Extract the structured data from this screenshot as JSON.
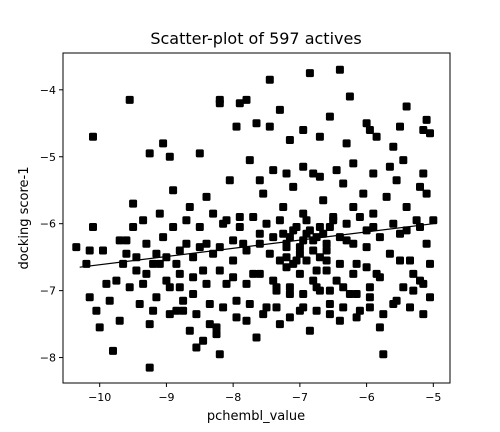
{
  "chart_data": {
    "type": "scatter",
    "title": "Scatter-plot of 597 actives",
    "xlabel": "pchembl_value",
    "ylabel": "docking score-1",
    "xlim": [
      -10.55,
      -4.75
    ],
    "ylim": [
      -8.38,
      -3.45
    ],
    "xticks": [
      -10,
      -9,
      -8,
      -7,
      -6,
      -5
    ],
    "xtick_labels": [
      "−10",
      "−9",
      "−8",
      "−7",
      "−6",
      "−5"
    ],
    "yticks": [
      -8,
      -7,
      -6,
      -5,
      -4
    ],
    "ytick_labels": [
      "−8",
      "−7",
      "−6",
      "−5",
      "−4"
    ],
    "grid": false,
    "marker_color": "#000000",
    "trend_line": {
      "x": [
        -10.3,
        -5.0
      ],
      "y": [
        -6.65,
        -6.0
      ]
    },
    "points": [
      [
        -10.1,
        -4.7
      ],
      [
        -9.55,
        -4.15
      ],
      [
        -9.25,
        -4.95
      ],
      [
        -9.05,
        -4.8
      ],
      [
        -8.95,
        -5.0
      ],
      [
        -8.5,
        -4.95
      ],
      [
        -8.2,
        -4.2
      ],
      [
        -8.2,
        -4.15
      ],
      [
        -7.9,
        -4.2
      ],
      [
        -7.8,
        -4.15
      ],
      [
        -7.45,
        -3.85
      ],
      [
        -6.85,
        -3.75
      ],
      [
        -6.4,
        -3.7
      ],
      [
        -6.25,
        -4.1
      ],
      [
        -5.4,
        -4.25
      ],
      [
        -5.1,
        -4.45
      ],
      [
        -7.95,
        -4.55
      ],
      [
        -7.65,
        -4.5
      ],
      [
        -7.45,
        -4.55
      ],
      [
        -7.3,
        -4.3
      ],
      [
        -6.55,
        -4.4
      ],
      [
        -6.0,
        -4.5
      ],
      [
        -5.95,
        -4.6
      ],
      [
        -5.5,
        -4.55
      ],
      [
        -5.15,
        -4.6
      ],
      [
        -5.05,
        -4.65
      ],
      [
        -7.15,
        -4.75
      ],
      [
        -6.95,
        -4.6
      ],
      [
        -6.7,
        -4.7
      ],
      [
        -6.3,
        -4.8
      ],
      [
        -5.85,
        -4.7
      ],
      [
        -5.6,
        -4.85
      ],
      [
        -10.35,
        -6.35
      ],
      [
        -10.2,
        -6.6
      ],
      [
        -10.1,
        -6.05
      ],
      [
        -10.15,
        -7.1
      ],
      [
        -10.05,
        -7.3
      ],
      [
        -10.0,
        -7.55
      ],
      [
        -9.95,
        -6.4
      ],
      [
        -9.9,
        -6.9
      ],
      [
        -9.85,
        -7.15
      ],
      [
        -9.8,
        -7.9
      ],
      [
        -9.75,
        -6.85
      ],
      [
        -9.7,
        -7.45
      ],
      [
        -9.65,
        -6.6
      ],
      [
        -9.6,
        -6.25
      ],
      [
        -9.55,
        -6.95
      ],
      [
        -9.5,
        -5.7
      ],
      [
        -9.45,
        -6.5
      ],
      [
        -9.4,
        -7.2
      ],
      [
        -9.35,
        -5.95
      ],
      [
        -9.3,
        -6.75
      ],
      [
        -9.25,
        -7.5
      ],
      [
        -9.25,
        -8.15
      ],
      [
        -9.2,
        -7.3
      ],
      [
        -9.15,
        -6.45
      ],
      [
        -9.1,
        -5.85
      ],
      [
        -9.05,
        -6.2
      ],
      [
        -9.0,
        -6.85
      ],
      [
        -8.95,
        -7.35
      ],
      [
        -8.9,
        -5.5
      ],
      [
        -8.85,
        -6.6
      ],
      [
        -8.8,
        -6.95
      ],
      [
        -8.75,
        -7.3
      ],
      [
        -8.7,
        -6.3
      ],
      [
        -8.65,
        -5.75
      ],
      [
        -8.6,
        -7.05
      ],
      [
        -8.55,
        -7.85
      ],
      [
        -8.5,
        -6.35
      ],
      [
        -8.45,
        -6.7
      ],
      [
        -8.4,
        -5.6
      ],
      [
        -8.35,
        -7.2
      ],
      [
        -8.3,
        -6.45
      ],
      [
        -8.25,
        -7.55
      ],
      [
        -8.2,
        -7.95
      ],
      [
        -8.15,
        -6.0
      ],
      [
        -8.1,
        -6.9
      ],
      [
        -8.05,
        -5.35
      ],
      [
        -8.0,
        -6.55
      ],
      [
        -7.95,
        -7.15
      ],
      [
        -7.9,
        -5.9
      ],
      [
        -7.85,
        -6.3
      ],
      [
        -7.8,
        -7.45
      ],
      [
        -7.75,
        -5.05
      ],
      [
        -7.7,
        -6.75
      ],
      [
        -7.65,
        -7.7
      ],
      [
        -7.6,
        -6.15
      ],
      [
        -7.55,
        -5.55
      ],
      [
        -7.5,
        -7.25
      ],
      [
        -7.45,
        -6.45
      ],
      [
        -7.4,
        -5.2
      ],
      [
        -7.35,
        -6.95
      ],
      [
        -7.3,
        -7.5
      ],
      [
        -7.25,
        -5.75
      ],
      [
        -7.2,
        -6.35
      ],
      [
        -7.15,
        -7.05
      ],
      [
        -7.1,
        -5.45
      ],
      [
        -7.05,
        -6.55
      ],
      [
        -7.0,
        -7.3
      ],
      [
        -6.95,
        -5.85
      ],
      [
        -6.9,
        -6.15
      ],
      [
        -6.85,
        -7.6
      ],
      [
        -6.8,
        -5.25
      ],
      [
        -6.75,
        -6.7
      ],
      [
        -6.7,
        -7.0
      ],
      [
        -6.65,
        -5.65
      ],
      [
        -6.6,
        -6.4
      ],
      [
        -6.55,
        -7.2
      ],
      [
        -6.5,
        -5.95
      ],
      [
        -6.45,
        -6.85
      ],
      [
        -6.4,
        -7.45
      ],
      [
        -6.35,
        -5.4
      ],
      [
        -6.3,
        -6.25
      ],
      [
        -6.25,
        -7.05
      ],
      [
        -6.2,
        -5.75
      ],
      [
        -6.15,
        -6.6
      ],
      [
        -6.1,
        -7.3
      ],
      [
        -6.05,
        -5.55
      ],
      [
        -6.0,
        -6.35
      ],
      [
        -5.95,
        -7.1
      ],
      [
        -5.9,
        -5.85
      ],
      [
        -5.85,
        -6.75
      ],
      [
        -5.8,
        -7.55
      ],
      [
        -5.75,
        -7.95
      ],
      [
        -5.7,
        -5.6
      ],
      [
        -5.65,
        -6.45
      ],
      [
        -5.6,
        -7.2
      ],
      [
        -5.55,
        -5.35
      ],
      [
        -5.5,
        -6.15
      ],
      [
        -5.45,
        -6.95
      ],
      [
        -5.4,
        -5.75
      ],
      [
        -5.35,
        -6.55
      ],
      [
        -5.3,
        -7.0
      ],
      [
        -5.25,
        -5.95
      ],
      [
        -5.2,
        -6.85
      ],
      [
        -5.15,
        -5.25
      ],
      [
        -5.1,
        -6.3
      ],
      [
        -5.05,
        -7.1
      ],
      [
        -5.1,
        -5.55
      ],
      [
        -5.05,
        -6.6
      ],
      [
        -5.15,
        -6.9
      ],
      [
        -5.2,
        -5.45
      ],
      [
        -5.3,
        -6.75
      ],
      [
        -5.45,
        -5.05
      ],
      [
        -9.6,
        -6.45
      ],
      [
        -9.45,
        -6.7
      ],
      [
        -9.2,
        -6.6
      ],
      [
        -9.0,
        -6.5
      ],
      [
        -8.8,
        -6.4
      ],
      [
        -8.6,
        -6.5
      ],
      [
        -8.4,
        -6.3
      ],
      [
        -8.2,
        -6.35
      ],
      [
        -8.0,
        -6.25
      ],
      [
        -7.8,
        -6.4
      ],
      [
        -7.6,
        -6.3
      ],
      [
        -7.4,
        -6.2
      ],
      [
        -7.2,
        -6.3
      ],
      [
        -7.0,
        -6.35
      ],
      [
        -6.8,
        -6.25
      ],
      [
        -6.6,
        -6.3
      ],
      [
        -6.4,
        -6.2
      ],
      [
        -6.2,
        -6.3
      ],
      [
        -6.0,
        -6.1
      ],
      [
        -5.8,
        -6.2
      ],
      [
        -5.6,
        -6.0
      ],
      [
        -5.4,
        -6.1
      ],
      [
        -5.2,
        -6.05
      ],
      [
        -5.0,
        -5.95
      ],
      [
        -8.9,
        -6.05
      ],
      [
        -8.7,
        -5.95
      ],
      [
        -8.5,
        -6.05
      ],
      [
        -8.3,
        -5.85
      ],
      [
        -8.1,
        -5.95
      ],
      [
        -7.9,
        -6.05
      ],
      [
        -7.7,
        -5.9
      ],
      [
        -7.5,
        -6.0
      ],
      [
        -7.3,
        -5.95
      ],
      [
        -7.1,
        -6.1
      ],
      [
        -6.9,
        -5.95
      ],
      [
        -6.7,
        -6.05
      ],
      [
        -6.5,
        -5.9
      ],
      [
        -6.3,
        -6.0
      ],
      [
        -6.1,
        -5.9
      ],
      [
        -5.9,
        -6.05
      ],
      [
        -8.8,
        -6.75
      ],
      [
        -8.6,
        -6.8
      ],
      [
        -8.4,
        -6.9
      ],
      [
        -8.2,
        -6.7
      ],
      [
        -8.0,
        -6.8
      ],
      [
        -7.8,
        -6.9
      ],
      [
        -7.6,
        -6.75
      ],
      [
        -7.4,
        -6.85
      ],
      [
        -7.2,
        -6.65
      ],
      [
        -7.0,
        -6.75
      ],
      [
        -6.8,
        -6.85
      ],
      [
        -6.6,
        -6.7
      ],
      [
        -6.4,
        -6.6
      ],
      [
        -6.2,
        -6.75
      ],
      [
        -6.0,
        -6.65
      ],
      [
        -5.8,
        -6.8
      ],
      [
        -7.3,
        -6.55
      ],
      [
        -7.2,
        -6.5
      ],
      [
        -7.1,
        -6.6
      ],
      [
        -7.0,
        -6.45
      ],
      [
        -6.9,
        -6.55
      ],
      [
        -6.8,
        -6.4
      ],
      [
        -6.7,
        -6.5
      ],
      [
        -6.6,
        -6.55
      ],
      [
        -7.25,
        -6.15
      ],
      [
        -7.15,
        -6.2
      ],
      [
        -7.05,
        -6.05
      ],
      [
        -6.95,
        -6.25
      ],
      [
        -6.85,
        -6.1
      ],
      [
        -6.75,
        -6.2
      ],
      [
        -6.65,
        -6.15
      ],
      [
        -6.55,
        -6.05
      ],
      [
        -7.35,
        -7.0
      ],
      [
        -7.15,
        -6.95
      ],
      [
        -6.95,
        -7.05
      ],
      [
        -6.75,
        -6.95
      ],
      [
        -6.55,
        -7.0
      ],
      [
        -6.35,
        -6.95
      ],
      [
        -6.15,
        -7.05
      ],
      [
        -5.95,
        -6.95
      ],
      [
        -7.6,
        -5.35
      ],
      [
        -7.2,
        -5.25
      ],
      [
        -6.95,
        -5.15
      ],
      [
        -6.7,
        -5.3
      ],
      [
        -6.45,
        -5.2
      ],
      [
        -6.2,
        -5.1
      ],
      [
        -5.9,
        -5.25
      ],
      [
        -5.65,
        -5.15
      ],
      [
        -9.5,
        -6.05
      ],
      [
        -9.3,
        -6.3
      ],
      [
        -9.1,
        -6.6
      ],
      [
        -8.95,
        -6.95
      ],
      [
        -8.75,
        -7.15
      ],
      [
        -8.55,
        -7.35
      ],
      [
        -8.35,
        -7.5
      ],
      [
        -8.15,
        -7.25
      ],
      [
        -7.95,
        -7.4
      ],
      [
        -7.75,
        -7.2
      ],
      [
        -7.55,
        -7.35
      ],
      [
        -7.35,
        -7.25
      ],
      [
        -7.15,
        -7.4
      ],
      [
        -6.95,
        -7.25
      ],
      [
        -6.75,
        -7.3
      ],
      [
        -6.55,
        -7.35
      ],
      [
        -6.35,
        -7.25
      ],
      [
        -6.15,
        -7.4
      ],
      [
        -5.95,
        -7.25
      ],
      [
        -5.75,
        -7.35
      ],
      [
        -5.55,
        -7.15
      ],
      [
        -5.35,
        -7.25
      ],
      [
        -5.15,
        -7.35
      ],
      [
        -5.5,
        -6.55
      ],
      [
        -10.15,
        -6.4
      ],
      [
        -9.7,
        -6.25
      ],
      [
        -9.35,
        -6.9
      ],
      [
        -9.15,
        -7.1
      ],
      [
        -8.85,
        -7.3
      ],
      [
        -8.65,
        -7.6
      ],
      [
        -8.45,
        -7.75
      ],
      [
        -8.25,
        -7.65
      ]
    ]
  }
}
